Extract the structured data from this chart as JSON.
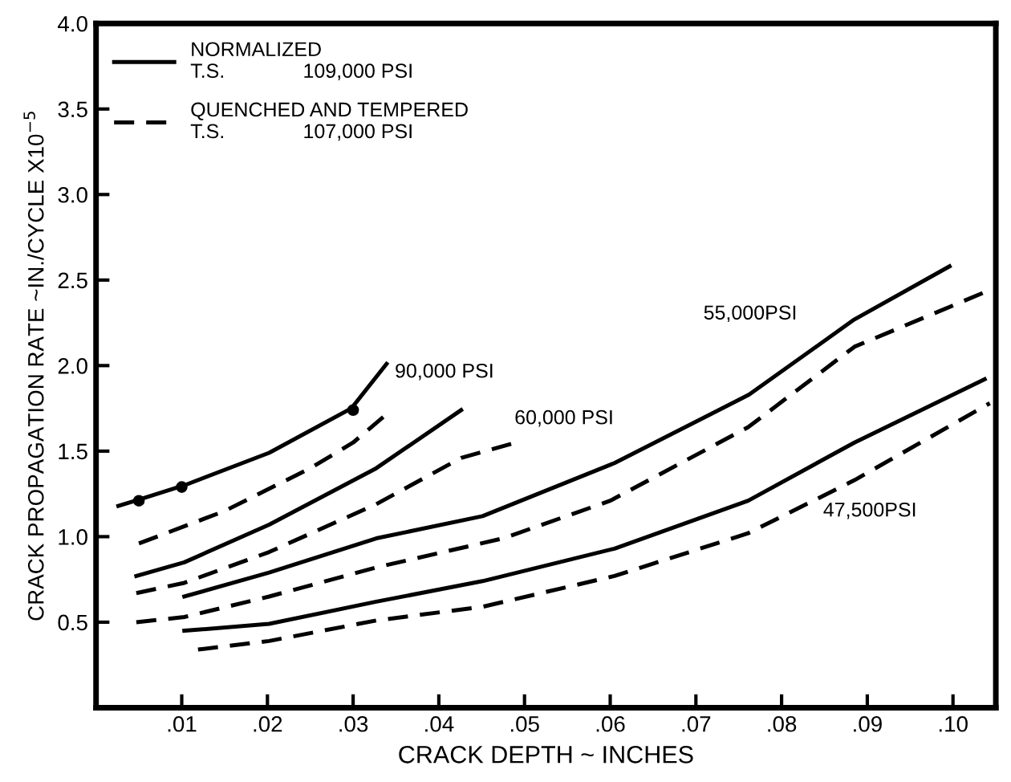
{
  "chart_data": {
    "type": "line",
    "xlabel": "CRACK DEPTH ~ INCHES",
    "ylabel": "CRACK PROPAGATION RATE ~IN./CYCLE X10$^{−5}$",
    "xlim": [
      0,
      0.105
    ],
    "ylim": [
      0,
      4.0
    ],
    "xticks": [
      {
        "value": 0.01,
        "label": ".01"
      },
      {
        "value": 0.02,
        "label": ".02"
      },
      {
        "value": 0.03,
        "label": ".03"
      },
      {
        "value": 0.04,
        "label": ".04"
      },
      {
        "value": 0.05,
        "label": ".05"
      },
      {
        "value": 0.06,
        "label": ".06"
      },
      {
        "value": 0.07,
        "label": ".07"
      },
      {
        "value": 0.08,
        "label": ".08"
      },
      {
        "value": 0.09,
        "label": ".09"
      },
      {
        "value": 0.1,
        "label": ".10"
      }
    ],
    "yticks": [
      0.5,
      {
        "value": 1.0,
        "label": "1.0"
      },
      1.5,
      {
        "value": 2.0,
        "label": "2.0"
      },
      2.5,
      {
        "value": 3.0,
        "label": "3.0"
      },
      3.5,
      {
        "value": 4.0,
        "label": "4.0"
      }
    ],
    "grid": false,
    "legend": "top left",
    "marker": "none",
    "series": [
      {
        "name": "NORMALIZED\nT.S.              109,000 PSI",
        "color": "#000000",
        "line_style": "solid",
        "x": [
          0.0026,
          0.0052,
          0.0103,
          0.0202,
          0.0298,
          0.0339
        ],
        "values": [
          1.18,
          1.22,
          1.3,
          1.49,
          1.75,
          2.01
        ]
      },
      {
        "name": "QUENCHED AND TEMPERED\nT.S.              107,000 PSI",
        "color": "#000000",
        "line_style": "dashed",
        "x": [
          0.005,
          0.015,
          0.025,
          0.03,
          0.034
        ],
        "values": [
          0.96,
          1.15,
          1.4,
          1.55,
          1.72
        ]
      },
      {
        "color": "#000000",
        "line_style": "solid",
        "x": [
          0.0047,
          0.0103,
          0.0202,
          0.0327,
          0.0426
        ],
        "values": [
          0.77,
          0.85,
          1.07,
          1.4,
          1.74
        ]
      },
      {
        "color": "#000000",
        "line_style": "dashed",
        "x": [
          0.0047,
          0.0103,
          0.0202,
          0.0327,
          0.0426,
          0.049
        ],
        "values": [
          0.67,
          0.73,
          0.91,
          1.19,
          1.46,
          1.55
        ]
      },
      {
        "color": "#000000",
        "line_style": "solid",
        "x": [
          0.0103,
          0.0202,
          0.0327,
          0.0451,
          0.0605,
          0.0762,
          0.0885,
          0.0996
        ],
        "values": [
          0.65,
          0.79,
          0.99,
          1.12,
          1.43,
          1.83,
          2.27,
          2.58
        ]
      },
      {
        "color": "#000000",
        "line_style": "dashed",
        "x": [
          0.0047,
          0.0103,
          0.0202,
          0.0327,
          0.0475,
          0.06,
          0.0761,
          0.0885,
          0.1047
        ],
        "values": [
          0.5,
          0.53,
          0.65,
          0.82,
          0.99,
          1.21,
          1.64,
          2.11,
          2.45
        ]
      },
      {
        "color": "#000000",
        "line_style": "solid",
        "x": [
          0.0103,
          0.0202,
          0.0327,
          0.0451,
          0.0605,
          0.0761,
          0.0885,
          0.1037
        ],
        "values": [
          0.45,
          0.49,
          0.62,
          0.74,
          0.93,
          1.21,
          1.55,
          1.92
        ]
      },
      {
        "color": "#000000",
        "line_style": "dashed",
        "x": [
          0.0119,
          0.0202,
          0.0327,
          0.0451,
          0.0605,
          0.0761,
          0.0885,
          0.1043
        ],
        "values": [
          0.34,
          0.39,
          0.51,
          0.59,
          0.77,
          1.02,
          1.33,
          1.78
        ]
      },
      {
        "type": "scatter",
        "marker": "circle",
        "color": "#000000",
        "x": [
          0.005,
          0.01,
          0.03
        ],
        "values": [
          1.21,
          1.29,
          1.74
        ]
      }
    ],
    "annotations": [
      "90,000 PSI",
      "60,000 PSI",
      "55,000PSI",
      "47,500PSI"
    ]
  }
}
